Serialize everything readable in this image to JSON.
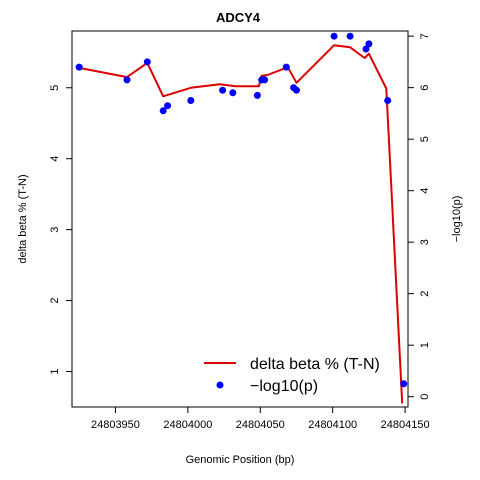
{
  "chart_data": {
    "type": "line",
    "title": "ADCY4",
    "xlabel": "Genomic Position (bp)",
    "ylabel": "delta beta % (T-N)",
    "y2label": "−log10(p)",
    "xlim": [
      24803920,
      24804152
    ],
    "ylim": [
      0.5,
      5.8
    ],
    "y2lim": [
      -0.2,
      7.1
    ],
    "x_ticks": [
      24803950,
      24804000,
      24804050,
      24804100,
      24804150
    ],
    "y_ticks": [
      1,
      2,
      3,
      4,
      5
    ],
    "y2_ticks": [
      0,
      1,
      2,
      3,
      4,
      5,
      6,
      7
    ],
    "grid": false,
    "legend_position": "bottom-right",
    "series": [
      {
        "name": "delta beta % (T-N)",
        "type": "line",
        "color": "#dd0000",
        "axis": "left",
        "x": [
          24803925,
          24803958,
          24803972,
          24803983,
          24804002,
          24804022,
          24804033,
          24804045,
          24804049,
          24804051,
          24804055,
          24804069,
          24804075,
          24804101,
          24804112,
          24804122,
          24804125,
          24804137,
          24804140,
          24804148
        ],
        "y": [
          5.28,
          5.15,
          5.35,
          4.88,
          5.0,
          5.05,
          5.02,
          5.02,
          5.02,
          5.17,
          5.18,
          5.29,
          5.07,
          5.6,
          5.57,
          5.42,
          5.48,
          4.99,
          3.8,
          0.55
        ]
      },
      {
        "name": "−log10(p)",
        "type": "scatter",
        "color": "#0000ff",
        "axis": "right",
        "x": [
          24803925,
          24803958,
          24803972,
          24803983,
          24803986,
          24804002,
          24804024,
          24804031,
          24804048,
          24804051,
          24804053,
          24804068,
          24804073,
          24804075,
          24804101,
          24804112,
          24804123,
          24804125,
          24804138,
          24804149
        ],
        "y": [
          6.4,
          6.15,
          6.5,
          5.55,
          5.65,
          5.75,
          5.95,
          5.9,
          5.85,
          6.15,
          6.15,
          6.4,
          6.0,
          5.95,
          7.0,
          7.0,
          6.75,
          6.85,
          5.75,
          0.25
        ]
      }
    ]
  }
}
